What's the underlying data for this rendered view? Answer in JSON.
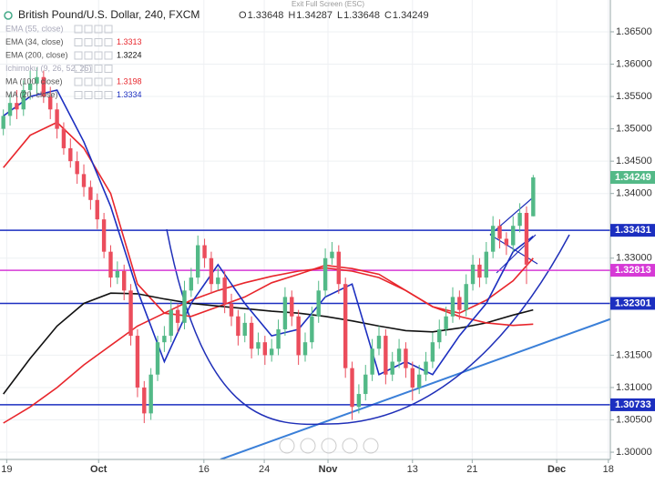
{
  "exit_fullscreen": "Exit Full Screen (ESC)",
  "chart_data": {
    "type": "candlestick",
    "title": "British Pound/U.S. Dollar, 240, FXCM",
    "ohlc_readout": [
      {
        "label": "O",
        "value": 1.33648
      },
      {
        "label": "H",
        "value": 1.34287
      },
      {
        "label": "L",
        "value": 1.33648
      },
      {
        "label": "C",
        "value": 1.34249
      }
    ],
    "up_color": "#53b987",
    "down_color": "#eb4d5c",
    "grid": true,
    "xlim": [
      -0.5,
      90.5
    ],
    "xticks": [
      {
        "value": 0.5,
        "label": "19"
      },
      {
        "value": 14.2,
        "label": "Oct"
      },
      {
        "value": 29.9,
        "label": "16"
      },
      {
        "value": 38.9,
        "label": "24"
      },
      {
        "value": 48.4,
        "label": "Nov"
      },
      {
        "value": 61,
        "label": "13"
      },
      {
        "value": 69.9,
        "label": "21"
      },
      {
        "value": 82.5,
        "label": "Dec"
      },
      {
        "value": 90.2,
        "label": "18"
      }
    ],
    "ylim": [
      1.29888,
      1.36992
    ],
    "yticks": [
      {
        "value": 1.365,
        "label": "1.36500"
      },
      {
        "value": 1.36,
        "label": "1.36000"
      },
      {
        "value": 1.355,
        "label": "1.35500"
      },
      {
        "value": 1.35,
        "label": "1.35000"
      },
      {
        "value": 1.345,
        "label": "1.34500"
      },
      {
        "value": 1.34,
        "label": "1.34000"
      },
      {
        "value": 1.33,
        "label": "1.33000"
      },
      {
        "value": 1.315,
        "label": "1.31500"
      },
      {
        "value": 1.31,
        "label": "1.31000"
      },
      {
        "value": 1.305,
        "label": "1.30500"
      },
      {
        "value": 1.3,
        "label": "1.30000"
      }
    ],
    "open": [
      1.35,
      1.352,
      1.354,
      1.353,
      1.356,
      1.357,
      1.358,
      1.355,
      1.353,
      1.35,
      1.347,
      1.345,
      1.343,
      1.341,
      1.339,
      1.336,
      1.331,
      1.327,
      1.328,
      1.325,
      1.318,
      1.31,
      1.306,
      1.312,
      1.317,
      1.318,
      1.322,
      1.32,
      1.325,
      1.327,
      1.332,
      1.33,
      1.326,
      1.327,
      1.323,
      1.321,
      1.318,
      1.32,
      1.316,
      1.317,
      1.315,
      1.316,
      1.319,
      1.324,
      1.321,
      1.315,
      1.317,
      1.321,
      1.325,
      1.33,
      1.331,
      1.326,
      1.313,
      1.307,
      1.309,
      1.312,
      1.316,
      1.318,
      1.312,
      1.314,
      1.316,
      1.313,
      1.31,
      1.312,
      1.314,
      1.317,
      1.319,
      1.321,
      1.324,
      1.322,
      1.326,
      1.329,
      1.327,
      1.331,
      1.335,
      1.333,
      1.332,
      1.335,
      1.337,
      1.33648
    ],
    "high": [
      1.353,
      1.3555,
      1.356,
      1.3575,
      1.359,
      1.3595,
      1.359,
      1.3565,
      1.354,
      1.351,
      1.3485,
      1.3465,
      1.3445,
      1.342,
      1.34,
      1.337,
      1.332,
      1.3295,
      1.329,
      1.326,
      1.319,
      1.311,
      1.313,
      1.318,
      1.3195,
      1.3235,
      1.323,
      1.3265,
      1.3285,
      1.3335,
      1.333,
      1.331,
      1.3285,
      1.328,
      1.3245,
      1.322,
      1.3215,
      1.321,
      1.3185,
      1.318,
      1.3175,
      1.3205,
      1.3255,
      1.325,
      1.322,
      1.3185,
      1.3225,
      1.3265,
      1.3315,
      1.3325,
      1.332,
      1.327,
      1.314,
      1.3105,
      1.3135,
      1.3175,
      1.3195,
      1.319,
      1.3155,
      1.3175,
      1.317,
      1.314,
      1.3135,
      1.3155,
      1.3185,
      1.3205,
      1.3225,
      1.3255,
      1.325,
      1.3275,
      1.3305,
      1.33,
      1.3325,
      1.3365,
      1.336,
      1.334,
      1.3365,
      1.3385,
      1.338,
      1.34287
    ],
    "low": [
      1.349,
      1.3505,
      1.3515,
      1.352,
      1.3545,
      1.3555,
      1.354,
      1.3515,
      1.3485,
      1.346,
      1.344,
      1.3415,
      1.3395,
      1.3375,
      1.3345,
      1.33,
      1.3255,
      1.326,
      1.3235,
      1.3165,
      1.3085,
      1.3045,
      1.305,
      1.311,
      1.3155,
      1.317,
      1.3185,
      1.319,
      1.324,
      1.326,
      1.3285,
      1.3245,
      1.325,
      1.3215,
      1.3195,
      1.3165,
      1.317,
      1.3145,
      1.315,
      1.3135,
      1.314,
      1.315,
      1.318,
      1.3195,
      1.3135,
      1.314,
      1.316,
      1.32,
      1.324,
      1.329,
      1.3245,
      1.3115,
      1.305,
      1.306,
      1.308,
      1.311,
      1.315,
      1.3105,
      1.311,
      1.313,
      1.3115,
      1.308,
      1.309,
      1.311,
      1.313,
      1.316,
      1.318,
      1.32,
      1.3205,
      1.321,
      1.325,
      1.3255,
      1.326,
      1.33,
      1.3315,
      1.3305,
      1.331,
      1.334,
      1.326,
      1.33648
    ],
    "close": [
      1.352,
      1.354,
      1.353,
      1.356,
      1.357,
      1.358,
      1.355,
      1.353,
      1.35,
      1.347,
      1.345,
      1.343,
      1.341,
      1.339,
      1.336,
      1.331,
      1.327,
      1.328,
      1.325,
      1.318,
      1.31,
      1.306,
      1.312,
      1.317,
      1.318,
      1.322,
      1.32,
      1.325,
      1.327,
      1.332,
      1.33,
      1.326,
      1.327,
      1.323,
      1.321,
      1.318,
      1.32,
      1.316,
      1.317,
      1.315,
      1.316,
      1.319,
      1.324,
      1.321,
      1.315,
      1.317,
      1.321,
      1.325,
      1.33,
      1.331,
      1.326,
      1.313,
      1.307,
      1.309,
      1.312,
      1.316,
      1.318,
      1.312,
      1.314,
      1.316,
      1.313,
      1.31,
      1.312,
      1.314,
      1.317,
      1.319,
      1.321,
      1.324,
      1.322,
      1.326,
      1.329,
      1.327,
      1.331,
      1.335,
      1.333,
      1.332,
      1.335,
      1.337,
      1.329,
      1.34249
    ],
    "last_price_color": "#53b987",
    "levels": [
      {
        "value": 1.33431,
        "color": "#1c2fc0"
      },
      {
        "value": 1.32813,
        "color": "#d63ad6"
      },
      {
        "value": 1.32301,
        "color": "#1c2fc0"
      },
      {
        "value": 1.30733,
        "color": "#1c2fc0"
      }
    ],
    "indicators": [
      {
        "name": "EMA (55, close)"
      },
      {
        "name": "EMA (34, close)",
        "value": 1.3313,
        "color": "#e8262c",
        "x": [
          0,
          4,
          8,
          12,
          16,
          20,
          24,
          28,
          32,
          36,
          40,
          44,
          48,
          52,
          56,
          60,
          64,
          68,
          72,
          76,
          79
        ],
        "values": [
          1.344,
          1.349,
          1.351,
          1.347,
          1.34,
          1.326,
          1.3215,
          1.321,
          1.3225,
          1.324,
          1.3262,
          1.3275,
          1.3289,
          1.3284,
          1.3275,
          1.325,
          1.3225,
          1.3215,
          1.3235,
          1.3265,
          1.33
        ]
      },
      {
        "name": "EMA (200, close)",
        "value": 1.3224,
        "color": "#111111",
        "x": [
          0,
          4,
          8,
          12,
          16,
          20,
          24,
          28,
          32,
          36,
          40,
          44,
          48,
          52,
          56,
          60,
          64,
          68,
          72,
          76,
          79
        ],
        "values": [
          1.309,
          1.3145,
          1.3195,
          1.323,
          1.3246,
          1.3245,
          1.3237,
          1.323,
          1.3226,
          1.3222,
          1.3218,
          1.3215,
          1.321,
          1.3203,
          1.3195,
          1.3188,
          1.3186,
          1.3192,
          1.32,
          1.3212,
          1.322
        ]
      },
      {
        "name": "Ichimoku (9, 26, 52, 26)"
      },
      {
        "name": "MA (100, close)",
        "value": 1.3198,
        "color": "#e8262c",
        "x": [
          0,
          4,
          8,
          12,
          16,
          20,
          24,
          28,
          32,
          36,
          40,
          44,
          48,
          52,
          56,
          60,
          64,
          68,
          72,
          76,
          79
        ],
        "values": [
          1.3045,
          1.307,
          1.31,
          1.3135,
          1.3165,
          1.3195,
          1.3215,
          1.3235,
          1.325,
          1.3262,
          1.3272,
          1.328,
          1.3285,
          1.328,
          1.327,
          1.325,
          1.3225,
          1.321,
          1.32,
          1.3196,
          1.3198
        ]
      },
      {
        "name": "MA (20, close)",
        "value": 1.3334,
        "color": "#1c2fc0",
        "x": [
          0,
          4,
          8,
          12,
          16,
          20,
          24,
          28,
          32,
          36,
          40,
          44,
          48,
          52,
          56,
          60,
          64,
          68,
          72,
          76,
          79
        ],
        "values": [
          1.352,
          1.355,
          1.356,
          1.348,
          1.338,
          1.325,
          1.314,
          1.323,
          1.329,
          1.323,
          1.318,
          1.319,
          1.324,
          1.326,
          1.312,
          1.314,
          1.312,
          1.318,
          1.323,
          1.331,
          1.3334
        ]
      }
    ]
  }
}
